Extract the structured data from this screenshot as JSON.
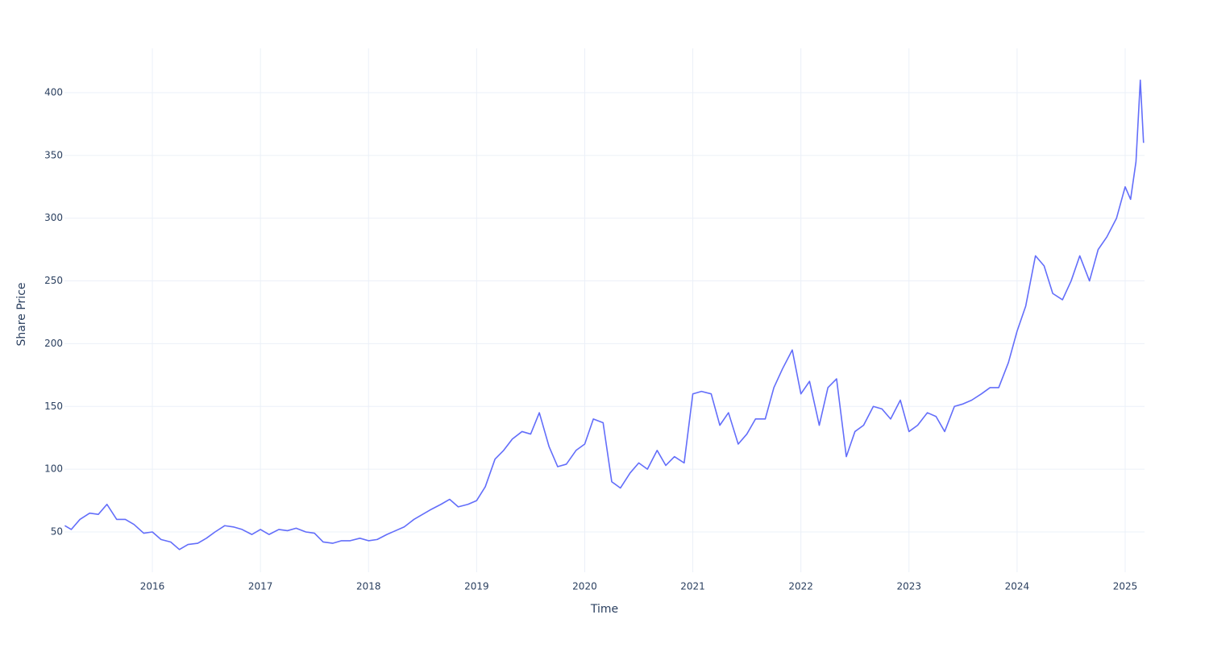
{
  "chart_data": {
    "type": "line",
    "x_label": "Time",
    "y_label": "Share Price",
    "x": [
      2015.19,
      2015.25,
      2015.33,
      2015.42,
      2015.5,
      2015.58,
      2015.67,
      2015.75,
      2015.83,
      2015.92,
      2016.0,
      2016.08,
      2016.17,
      2016.25,
      2016.33,
      2016.42,
      2016.5,
      2016.58,
      2016.67,
      2016.75,
      2016.83,
      2016.92,
      2017.0,
      2017.08,
      2017.17,
      2017.25,
      2017.33,
      2017.42,
      2017.5,
      2017.58,
      2017.67,
      2017.75,
      2017.83,
      2017.92,
      2018.0,
      2018.08,
      2018.17,
      2018.25,
      2018.33,
      2018.42,
      2018.5,
      2018.58,
      2018.67,
      2018.75,
      2018.83,
      2018.92,
      2019.0,
      2019.08,
      2019.17,
      2019.25,
      2019.33,
      2019.42,
      2019.5,
      2019.58,
      2019.67,
      2019.75,
      2019.83,
      2019.92,
      2020.0,
      2020.08,
      2020.17,
      2020.25,
      2020.33,
      2020.42,
      2020.5,
      2020.58,
      2020.67,
      2020.75,
      2020.83,
      2020.92,
      2021.0,
      2021.08,
      2021.17,
      2021.25,
      2021.33,
      2021.42,
      2021.5,
      2021.58,
      2021.67,
      2021.75,
      2021.83,
      2021.92,
      2022.0,
      2022.08,
      2022.17,
      2022.25,
      2022.33,
      2022.42,
      2022.5,
      2022.58,
      2022.67,
      2022.75,
      2022.83,
      2022.92,
      2023.0,
      2023.08,
      2023.17,
      2023.25,
      2023.33,
      2023.42,
      2023.5,
      2023.58,
      2023.67,
      2023.75,
      2023.83,
      2023.92,
      2024.0,
      2024.08,
      2024.17,
      2024.25,
      2024.33,
      2024.42,
      2024.5,
      2024.58,
      2024.67,
      2024.75,
      2024.83,
      2024.92,
      2025.0,
      2025.05,
      2025.1,
      2025.14,
      2025.17
    ],
    "values": [
      55,
      52,
      60,
      65,
      64,
      72,
      60,
      60,
      56,
      49,
      50,
      44,
      42,
      36,
      40,
      41,
      45,
      50,
      55,
      54,
      52,
      48,
      52,
      48,
      52,
      51,
      53,
      50,
      49,
      42,
      41,
      43,
      43,
      45,
      43,
      44,
      48,
      51,
      54,
      60,
      64,
      68,
      72,
      76,
      70,
      72,
      75,
      86,
      108,
      115,
      124,
      130,
      128,
      145,
      118,
      102,
      104,
      115,
      120,
      140,
      137,
      90,
      85,
      97,
      105,
      100,
      115,
      103,
      110,
      105,
      160,
      162,
      160,
      135,
      145,
      120,
      128,
      140,
      140,
      165,
      180,
      195,
      160,
      170,
      135,
      165,
      172,
      110,
      130,
      135,
      150,
      148,
      140,
      155,
      130,
      135,
      145,
      142,
      130,
      150,
      152,
      155,
      160,
      165,
      165,
      185,
      210,
      230,
      270,
      262,
      240,
      235,
      250,
      270,
      250,
      275,
      285,
      300,
      325,
      315,
      345,
      410,
      360
    ],
    "color": "#636efa",
    "xlim": [
      2015.187,
      2025.179
    ],
    "xticks": [
      2016,
      2017,
      2018,
      2019,
      2020,
      2021,
      2022,
      2023,
      2024,
      2025
    ],
    "ylim": [
      17.9,
      435.3
    ],
    "yticks": [
      50,
      100,
      150,
      200,
      250,
      300,
      350,
      400
    ],
    "grid": true
  }
}
